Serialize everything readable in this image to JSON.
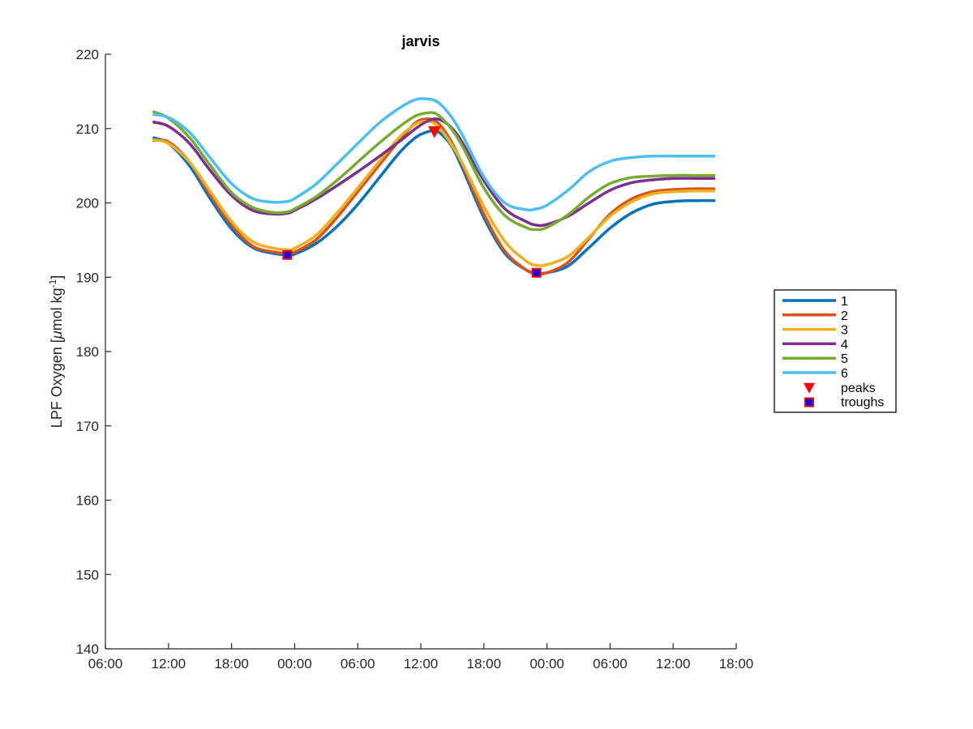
{
  "chart_data": {
    "type": "line",
    "title": "jarvis",
    "ylabel_prefix": "LPF Oxygen [",
    "ylabel_mu": "μ",
    "ylabel_unit": "mol kg",
    "ylabel_sup": "-1",
    "ylabel_suffix": "]",
    "xlabel": "",
    "xlim": [
      6,
      66
    ],
    "ylim": [
      140,
      220
    ],
    "xticks": [
      6,
      12,
      18,
      24,
      30,
      36,
      42,
      48,
      54,
      60,
      66
    ],
    "xtick_labels": [
      "06:00",
      "12:00",
      "18:00",
      "00:00",
      "06:00",
      "12:00",
      "18:00",
      "00:00",
      "06:00",
      "12:00",
      "18:00"
    ],
    "yticks": [
      140,
      150,
      160,
      170,
      180,
      190,
      200,
      210,
      220
    ],
    "ytick_labels": [
      "140",
      "150",
      "160",
      "170",
      "180",
      "190",
      "200",
      "210",
      "220"
    ],
    "grid": false,
    "legend_position": "outside-right",
    "series": [
      {
        "name": "1",
        "color": "#0072BD",
        "points": [
          [
            10.5,
            208.8
          ],
          [
            12,
            208
          ],
          [
            14,
            205
          ],
          [
            16,
            200.5
          ],
          [
            18,
            196.5
          ],
          [
            20,
            194
          ],
          [
            22,
            193.2
          ],
          [
            23.3,
            193
          ],
          [
            24,
            193.1
          ],
          [
            26,
            194.5
          ],
          [
            28,
            196.8
          ],
          [
            30,
            199.8
          ],
          [
            32,
            203.3
          ],
          [
            34,
            206.8
          ],
          [
            35.5,
            208.8
          ],
          [
            36.5,
            209.5
          ],
          [
            37.3,
            209.7
          ],
          [
            38,
            209.2
          ],
          [
            39,
            207.5
          ],
          [
            40,
            204.5
          ],
          [
            42,
            198
          ],
          [
            44,
            193.2
          ],
          [
            46,
            191
          ],
          [
            47,
            190.6
          ],
          [
            48,
            190.6
          ],
          [
            50,
            191.5
          ],
          [
            52,
            194
          ],
          [
            54,
            196.6
          ],
          [
            56,
            198.6
          ],
          [
            58,
            199.8
          ],
          [
            60,
            200.2
          ],
          [
            62,
            200.3
          ],
          [
            64,
            200.3
          ]
        ]
      },
      {
        "name": "2",
        "color": "#D95319",
        "points": [
          [
            10.5,
            208.4
          ],
          [
            12,
            208.2
          ],
          [
            14,
            205.5
          ],
          [
            16,
            201
          ],
          [
            18,
            197
          ],
          [
            20,
            194.2
          ],
          [
            22,
            193.4
          ],
          [
            23.3,
            193.2
          ],
          [
            24,
            193.4
          ],
          [
            26,
            195
          ],
          [
            28,
            198
          ],
          [
            30,
            201.5
          ],
          [
            32,
            205
          ],
          [
            34,
            208.5
          ],
          [
            35.5,
            210.8
          ],
          [
            36.5,
            211.3
          ],
          [
            37.3,
            211.1
          ],
          [
            38,
            210.2
          ],
          [
            39,
            208
          ],
          [
            40,
            205
          ],
          [
            42,
            198.5
          ],
          [
            44,
            193.5
          ],
          [
            46,
            191
          ],
          [
            47,
            190.5
          ],
          [
            48,
            190.6
          ],
          [
            50,
            192
          ],
          [
            52,
            195.2
          ],
          [
            54,
            198.5
          ],
          [
            56,
            200.5
          ],
          [
            58,
            201.5
          ],
          [
            60,
            201.8
          ],
          [
            62,
            201.9
          ],
          [
            64,
            201.9
          ]
        ]
      },
      {
        "name": "3",
        "color": "#EDB120",
        "points": [
          [
            10.5,
            208.5
          ],
          [
            12,
            208
          ],
          [
            14,
            205.5
          ],
          [
            16,
            201.5
          ],
          [
            18,
            197.5
          ],
          [
            20,
            194.8
          ],
          [
            22,
            193.9
          ],
          [
            23.3,
            193.7
          ],
          [
            24,
            193.9
          ],
          [
            26,
            195.6
          ],
          [
            28,
            198.6
          ],
          [
            30,
            202
          ],
          [
            32,
            205.5
          ],
          [
            34,
            208.9
          ],
          [
            35.5,
            210.6
          ],
          [
            36.5,
            211
          ],
          [
            37.3,
            210.7
          ],
          [
            38,
            209.7
          ],
          [
            39,
            207.7
          ],
          [
            40,
            205.2
          ],
          [
            42,
            199.5
          ],
          [
            44,
            194.8
          ],
          [
            46,
            192.2
          ],
          [
            47,
            191.6
          ],
          [
            48,
            191.7
          ],
          [
            50,
            192.8
          ],
          [
            52,
            195.4
          ],
          [
            54,
            198.2
          ],
          [
            56,
            200.1
          ],
          [
            58,
            201.2
          ],
          [
            60,
            201.5
          ],
          [
            62,
            201.6
          ],
          [
            64,
            201.6
          ]
        ]
      },
      {
        "name": "4",
        "color": "#7E2F8E",
        "points": [
          [
            10.5,
            210.9
          ],
          [
            12,
            210.3
          ],
          [
            14,
            208
          ],
          [
            16,
            204.3
          ],
          [
            18,
            201
          ],
          [
            20,
            199
          ],
          [
            22,
            198.5
          ],
          [
            23.3,
            198.6
          ],
          [
            24,
            199
          ],
          [
            26,
            200.5
          ],
          [
            28,
            202.3
          ],
          [
            30,
            204.2
          ],
          [
            32,
            206.2
          ],
          [
            34,
            208.3
          ],
          [
            35.5,
            210
          ],
          [
            36.5,
            210.9
          ],
          [
            37.3,
            211.3
          ],
          [
            38,
            211.1
          ],
          [
            39,
            210
          ],
          [
            40,
            208
          ],
          [
            42,
            203
          ],
          [
            44,
            199.2
          ],
          [
            46,
            197.5
          ],
          [
            47,
            197
          ],
          [
            48,
            197.1
          ],
          [
            50,
            198.2
          ],
          [
            52,
            200
          ],
          [
            54,
            201.7
          ],
          [
            56,
            202.7
          ],
          [
            58,
            203.1
          ],
          [
            60,
            203.3
          ],
          [
            62,
            203.3
          ],
          [
            64,
            203.3
          ]
        ]
      },
      {
        "name": "5",
        "color": "#77AC30",
        "points": [
          [
            10.5,
            212.3
          ],
          [
            12,
            211.4
          ],
          [
            14,
            208.8
          ],
          [
            16,
            205
          ],
          [
            18,
            201.4
          ],
          [
            20,
            199.4
          ],
          [
            22,
            198.7
          ],
          [
            23.3,
            198.8
          ],
          [
            24,
            199.2
          ],
          [
            26,
            200.8
          ],
          [
            28,
            203
          ],
          [
            30,
            205.5
          ],
          [
            32,
            208
          ],
          [
            34,
            210.3
          ],
          [
            35.5,
            211.7
          ],
          [
            36.5,
            212.1
          ],
          [
            37.3,
            212.1
          ],
          [
            38,
            211.4
          ],
          [
            39,
            209.8
          ],
          [
            40,
            207.5
          ],
          [
            42,
            202
          ],
          [
            44,
            198.3
          ],
          [
            46,
            196.7
          ],
          [
            47,
            196.4
          ],
          [
            48,
            196.7
          ],
          [
            50,
            198.4
          ],
          [
            52,
            200.8
          ],
          [
            54,
            202.6
          ],
          [
            56,
            203.4
          ],
          [
            58,
            203.6
          ],
          [
            60,
            203.7
          ],
          [
            62,
            203.7
          ],
          [
            64,
            203.7
          ]
        ]
      },
      {
        "name": "6",
        "color": "#4DBEEE",
        "points": [
          [
            10.5,
            211.9
          ],
          [
            12,
            211.5
          ],
          [
            14,
            209.5
          ],
          [
            16,
            206
          ],
          [
            18,
            202.6
          ],
          [
            20,
            200.6
          ],
          [
            22,
            200.1
          ],
          [
            23.3,
            200.2
          ],
          [
            24,
            200.6
          ],
          [
            26,
            202.5
          ],
          [
            28,
            205.2
          ],
          [
            30,
            208
          ],
          [
            32,
            210.7
          ],
          [
            34,
            212.8
          ],
          [
            35.5,
            213.9
          ],
          [
            36.5,
            214
          ],
          [
            37.3,
            213.8
          ],
          [
            38,
            213.1
          ],
          [
            39,
            211.4
          ],
          [
            40,
            209
          ],
          [
            42,
            203.5
          ],
          [
            44,
            200
          ],
          [
            46,
            199.1
          ],
          [
            47,
            199.2
          ],
          [
            48,
            199.7
          ],
          [
            50,
            201.7
          ],
          [
            52,
            204.2
          ],
          [
            54,
            205.6
          ],
          [
            56,
            206.1
          ],
          [
            58,
            206.3
          ],
          [
            60,
            206.3
          ],
          [
            62,
            206.3
          ],
          [
            64,
            206.3
          ]
        ]
      }
    ],
    "peaks": {
      "name": "peaks",
      "color": "#FF0000",
      "points": [
        [
          37.3,
          209.6
        ]
      ]
    },
    "troughs": {
      "name": "troughs",
      "color": "#0000FF",
      "edge_color": "#FF0000",
      "points": [
        [
          23.3,
          193.0
        ],
        [
          47.0,
          190.6
        ]
      ]
    }
  }
}
